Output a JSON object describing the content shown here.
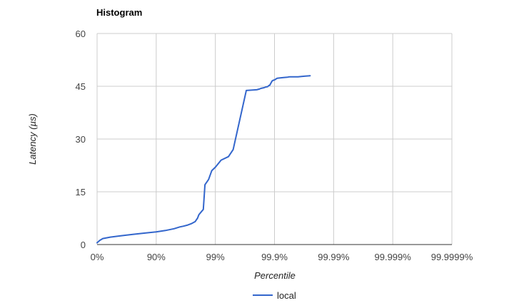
{
  "chart_data": {
    "type": "line",
    "title": "Histogram",
    "xlabel": "Percentile",
    "ylabel": "Latency (µs)",
    "x_scale": "nines",
    "x_tick_labels": [
      "0%",
      "90%",
      "99%",
      "99.9%",
      "99.99%",
      "99.999%",
      "99.9999%"
    ],
    "x_tick_values": [
      0,
      90,
      99,
      99.9,
      99.99,
      99.999,
      99.9999
    ],
    "ylim": [
      0,
      60
    ],
    "y_ticks": [
      0,
      15,
      30,
      45,
      60
    ],
    "grid": true,
    "legend_position": "bottom",
    "series": [
      {
        "name": "local",
        "color": "#3366cc",
        "x": [
          0,
          10,
          20,
          40,
          60,
          75,
          85,
          90,
          93,
          95,
          96,
          96.5,
          97,
          97.5,
          97.8,
          98,
          98.1,
          98.4,
          98.5,
          98.7,
          98.85,
          99,
          99.2,
          99.4,
          99.5,
          99.7,
          99.8,
          99.82,
          99.83,
          99.84,
          99.85,
          99.86,
          99.87,
          99.875,
          99.88,
          99.89,
          99.895,
          99.9,
          99.91,
          99.92,
          99.93,
          99.94,
          99.945,
          99.95,
          99.96,
          99.965,
          99.97,
          99.975
        ],
        "values": [
          0.5,
          1.2,
          1.7,
          2.1,
          2.5,
          2.9,
          3.3,
          3.6,
          4.0,
          4.5,
          5.0,
          5.2,
          5.5,
          6.0,
          6.5,
          7.5,
          8.5,
          10.0,
          17.0,
          18.5,
          21.0,
          22.0,
          24.0,
          25.0,
          27.0,
          43.8,
          44.0,
          44.2,
          44.4,
          44.5,
          44.6,
          44.8,
          44.9,
          45.2,
          45.3,
          46.5,
          46.7,
          46.8,
          47.3,
          47.4,
          47.5,
          47.6,
          47.7,
          47.7,
          47.7,
          47.8,
          47.9,
          48.0
        ]
      }
    ]
  }
}
